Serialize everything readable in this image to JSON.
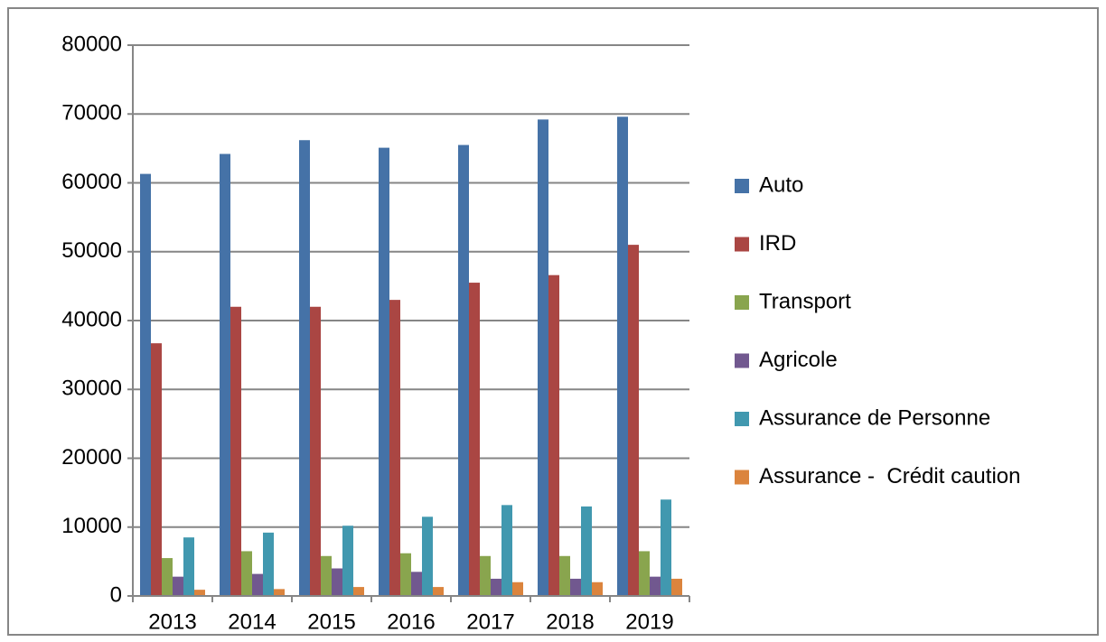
{
  "chart_data": {
    "type": "bar",
    "categories": [
      "2013",
      "2014",
      "2015",
      "2016",
      "2017",
      "2018",
      "2019"
    ],
    "series": [
      {
        "name": "Auto",
        "color": "#4572a7",
        "values": [
          61300,
          64200,
          66200,
          65100,
          65500,
          69200,
          69600
        ]
      },
      {
        "name": "IRD",
        "color": "#aa4643",
        "values": [
          36700,
          42000,
          42000,
          43000,
          45500,
          46600,
          51000
        ]
      },
      {
        "name": "Transport",
        "color": "#89a54e",
        "values": [
          5500,
          6500,
          5800,
          6200,
          5800,
          5800,
          6500
        ]
      },
      {
        "name": "Agricole",
        "color": "#71588f",
        "values": [
          2800,
          3200,
          4000,
          3500,
          2500,
          2500,
          2800
        ]
      },
      {
        "name": "Assurance de Personne",
        "color": "#4198af",
        "values": [
          8500,
          9200,
          10200,
          11500,
          13200,
          13000,
          14000
        ]
      },
      {
        "name": "Assurance -  Crédit caution",
        "color": "#db843d",
        "values": [
          900,
          1000,
          1300,
          1300,
          2000,
          2000,
          2500
        ]
      }
    ],
    "ylim": [
      0,
      80000
    ],
    "yticks": [
      0,
      10000,
      20000,
      30000,
      40000,
      50000,
      60000,
      70000,
      80000
    ],
    "grid": true,
    "legend": "right"
  }
}
